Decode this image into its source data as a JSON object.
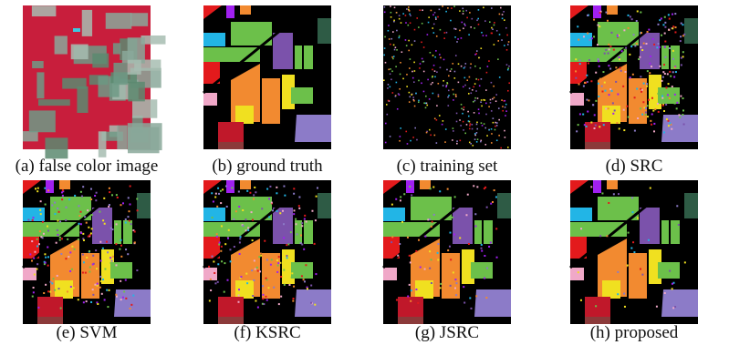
{
  "panels": [
    {
      "caption": "(a) false color image"
    },
    {
      "caption": "(b) ground truth"
    },
    {
      "caption": "(c) training set"
    },
    {
      "caption": "(d) SRC"
    },
    {
      "caption": "(e) SVM"
    },
    {
      "caption": "(f) KSRC"
    },
    {
      "caption": "(g) JSRC"
    },
    {
      "caption": "(h) proposed"
    }
  ]
}
